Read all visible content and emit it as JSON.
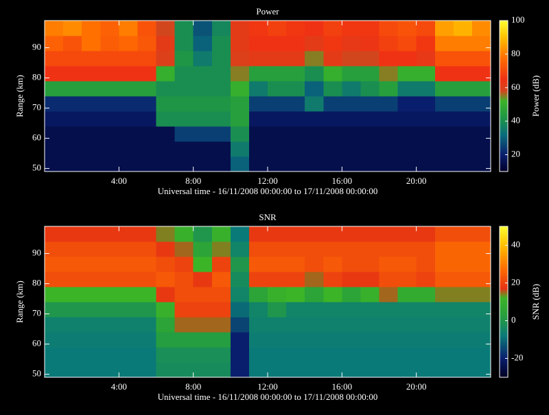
{
  "chart_data": [
    {
      "type": "heatmap",
      "title": "Power",
      "x_label": "Universal time - 16/11/2008 00:00:00 to 17/11/2008 00:00:00",
      "y_label": "Range (km)",
      "colorbar_label": "Power (dB)",
      "xbins": [
        0,
        1,
        2,
        3,
        4,
        5,
        6,
        7,
        8,
        9,
        10,
        11,
        12,
        13,
        14,
        15,
        16,
        17,
        18,
        19,
        20,
        21,
        22,
        23,
        24
      ],
      "ybins": [
        49,
        54,
        59,
        64,
        69,
        74,
        79,
        84,
        89,
        94,
        99
      ],
      "values": [
        [
          15,
          15,
          15,
          15,
          15,
          15,
          15,
          15,
          15,
          15,
          30,
          15,
          15,
          15,
          15,
          15,
          15,
          15,
          15,
          15,
          15,
          15,
          15,
          15
        ],
        [
          15,
          15,
          15,
          15,
          15,
          15,
          15,
          15,
          15,
          15,
          35,
          15,
          15,
          15,
          15,
          15,
          15,
          15,
          15,
          15,
          15,
          15,
          15,
          15
        ],
        [
          15,
          15,
          15,
          15,
          15,
          15,
          15,
          25,
          25,
          25,
          40,
          15,
          15,
          15,
          15,
          15,
          15,
          15,
          15,
          15,
          15,
          15,
          15,
          15
        ],
        [
          18,
          18,
          18,
          18,
          18,
          18,
          40,
          40,
          40,
          40,
          45,
          18,
          18,
          18,
          18,
          18,
          18,
          18,
          18,
          18,
          18,
          18,
          18,
          18
        ],
        [
          22,
          22,
          22,
          22,
          22,
          22,
          42,
          42,
          42,
          42,
          45,
          25,
          25,
          25,
          35,
          25,
          25,
          25,
          25,
          20,
          20,
          25,
          25,
          25
        ],
        [
          45,
          45,
          45,
          45,
          45,
          45,
          40,
          40,
          40,
          40,
          50,
          35,
          40,
          40,
          30,
          40,
          35,
          40,
          45,
          35,
          35,
          45,
          45,
          45
        ],
        [
          65,
          65,
          65,
          65,
          65,
          65,
          50,
          40,
          40,
          40,
          55,
          45,
          45,
          45,
          40,
          50,
          45,
          45,
          55,
          50,
          50,
          65,
          65,
          65
        ],
        [
          70,
          70,
          70,
          70,
          70,
          70,
          60,
          42,
          35,
          40,
          60,
          62,
          62,
          62,
          55,
          62,
          58,
          58,
          65,
          65,
          63,
          72,
          72,
          72
        ],
        [
          75,
          72,
          78,
          74,
          76,
          73,
          62,
          40,
          30,
          40,
          62,
          65,
          65,
          65,
          62,
          66,
          63,
          64,
          68,
          70,
          66,
          80,
          80,
          80
        ],
        [
          80,
          82,
          78,
          75,
          80,
          72,
          58,
          40,
          28,
          38,
          62,
          66,
          68,
          66,
          65,
          68,
          66,
          66,
          70,
          72,
          70,
          85,
          88,
          82
        ]
      ],
      "xlim": [
        0,
        24
      ],
      "ylim": [
        49,
        99
      ],
      "xticks": [
        {
          "value": 4,
          "label": "4:00"
        },
        {
          "value": 8,
          "label": "8:00"
        },
        {
          "value": 12,
          "label": "12:00"
        },
        {
          "value": 16,
          "label": "16:00"
        },
        {
          "value": 20,
          "label": "20:00"
        }
      ],
      "yticks": [
        50,
        60,
        70,
        80,
        90
      ],
      "clim": [
        10,
        100
      ],
      "cticks": [
        20,
        40,
        60,
        80,
        100
      ],
      "colorscale": [
        {
          "value": 10,
          "color": "#00002a"
        },
        {
          "value": 20,
          "color": "#0a1e6e"
        },
        {
          "value": 32,
          "color": "#0a6e7c"
        },
        {
          "value": 42,
          "color": "#1e9646"
        },
        {
          "value": 52,
          "color": "#3cb428"
        },
        {
          "value": 58,
          "color": "#d2461e"
        },
        {
          "value": 65,
          "color": "#f03214"
        },
        {
          "value": 78,
          "color": "#ff7000"
        },
        {
          "value": 90,
          "color": "#ffc000"
        },
        {
          "value": 100,
          "color": "#ffff30"
        }
      ]
    },
    {
      "type": "heatmap",
      "title": "SNR",
      "x_label": "Universal time - 16/11/2008 00:00:00 to 17/11/2008 00:00:00",
      "y_label": "Range (km)",
      "colorbar_label": "SNR (dB)",
      "xbins": [
        0,
        1,
        2,
        3,
        4,
        5,
        6,
        7,
        8,
        9,
        10,
        11,
        12,
        13,
        14,
        15,
        16,
        17,
        18,
        19,
        20,
        21,
        22,
        23,
        24
      ],
      "ybins": [
        49,
        54,
        59,
        64,
        69,
        74,
        79,
        84,
        89,
        94,
        99
      ],
      "values": [
        [
          -8,
          -8,
          -8,
          -8,
          -8,
          -8,
          -3,
          -3,
          -3,
          -3,
          -20,
          -8,
          -8,
          -8,
          -8,
          -8,
          -8,
          -8,
          -8,
          -8,
          -8,
          -8,
          -8,
          -8
        ],
        [
          -8,
          -8,
          -8,
          -8,
          -8,
          -8,
          -2,
          -2,
          -2,
          -2,
          -20,
          -8,
          -8,
          -8,
          -8,
          -8,
          -8,
          -8,
          -8,
          -8,
          -8,
          -8,
          -8,
          -8
        ],
        [
          -7,
          -7,
          -7,
          -7,
          -7,
          -7,
          2,
          2,
          2,
          2,
          -20,
          -7,
          -7,
          -7,
          -7,
          -7,
          -7,
          -7,
          -7,
          -7,
          -7,
          -7,
          -7,
          -7
        ],
        [
          -6,
          -6,
          -6,
          -6,
          -6,
          -6,
          5,
          15,
          15,
          15,
          -15,
          -6,
          -6,
          -6,
          -6,
          -6,
          -6,
          -6,
          -6,
          -6,
          -6,
          -6,
          -6,
          -6
        ],
        [
          0,
          0,
          0,
          0,
          0,
          0,
          10,
          20,
          20,
          20,
          -10,
          -5,
          0,
          -5,
          -5,
          -5,
          -5,
          -5,
          -5,
          -5,
          -5,
          -5,
          -5,
          -5
        ],
        [
          12,
          12,
          12,
          12,
          12,
          12,
          18,
          22,
          22,
          22,
          -5,
          5,
          10,
          12,
          5,
          12,
          5,
          10,
          15,
          8,
          8,
          14,
          14,
          14
        ],
        [
          22,
          22,
          22,
          22,
          22,
          22,
          24,
          22,
          18,
          24,
          -3,
          20,
          20,
          20,
          15,
          20,
          18,
          18,
          22,
          22,
          20,
          24,
          24,
          24
        ],
        [
          24,
          24,
          24,
          24,
          24,
          24,
          22,
          20,
          12,
          20,
          0,
          24,
          24,
          24,
          22,
          24,
          22,
          22,
          24,
          24,
          22,
          26,
          26,
          26
        ],
        [
          22,
          22,
          22,
          22,
          22,
          22,
          18,
          15,
          5,
          14,
          -5,
          22,
          22,
          22,
          22,
          22,
          22,
          22,
          22,
          22,
          22,
          26,
          26,
          26
        ],
        [
          18,
          18,
          18,
          18,
          18,
          18,
          14,
          10,
          0,
          10,
          -8,
          18,
          18,
          18,
          18,
          18,
          18,
          18,
          18,
          18,
          18,
          22,
          22,
          22
        ]
      ],
      "xlim": [
        0,
        24
      ],
      "ylim": [
        49,
        99
      ],
      "xticks": [
        {
          "value": 4,
          "label": "4:00"
        },
        {
          "value": 8,
          "label": "8:00"
        },
        {
          "value": 12,
          "label": "12:00"
        },
        {
          "value": 16,
          "label": "16:00"
        },
        {
          "value": 20,
          "label": "20:00"
        }
      ],
      "yticks": [
        50,
        60,
        70,
        80,
        90
      ],
      "clim": [
        -30,
        50
      ],
      "cticks": [
        -20,
        0,
        20,
        40
      ],
      "colorscale": [
        {
          "value": -30,
          "color": "#000020"
        },
        {
          "value": -20,
          "color": "#0a1e6e"
        },
        {
          "value": -8,
          "color": "#0a7a78"
        },
        {
          "value": 3,
          "color": "#28a03c"
        },
        {
          "value": 12,
          "color": "#3cb428"
        },
        {
          "value": 17,
          "color": "#e63214"
        },
        {
          "value": 28,
          "color": "#ff7000"
        },
        {
          "value": 40,
          "color": "#ffc000"
        },
        {
          "value": 50,
          "color": "#ffff30"
        }
      ]
    }
  ]
}
